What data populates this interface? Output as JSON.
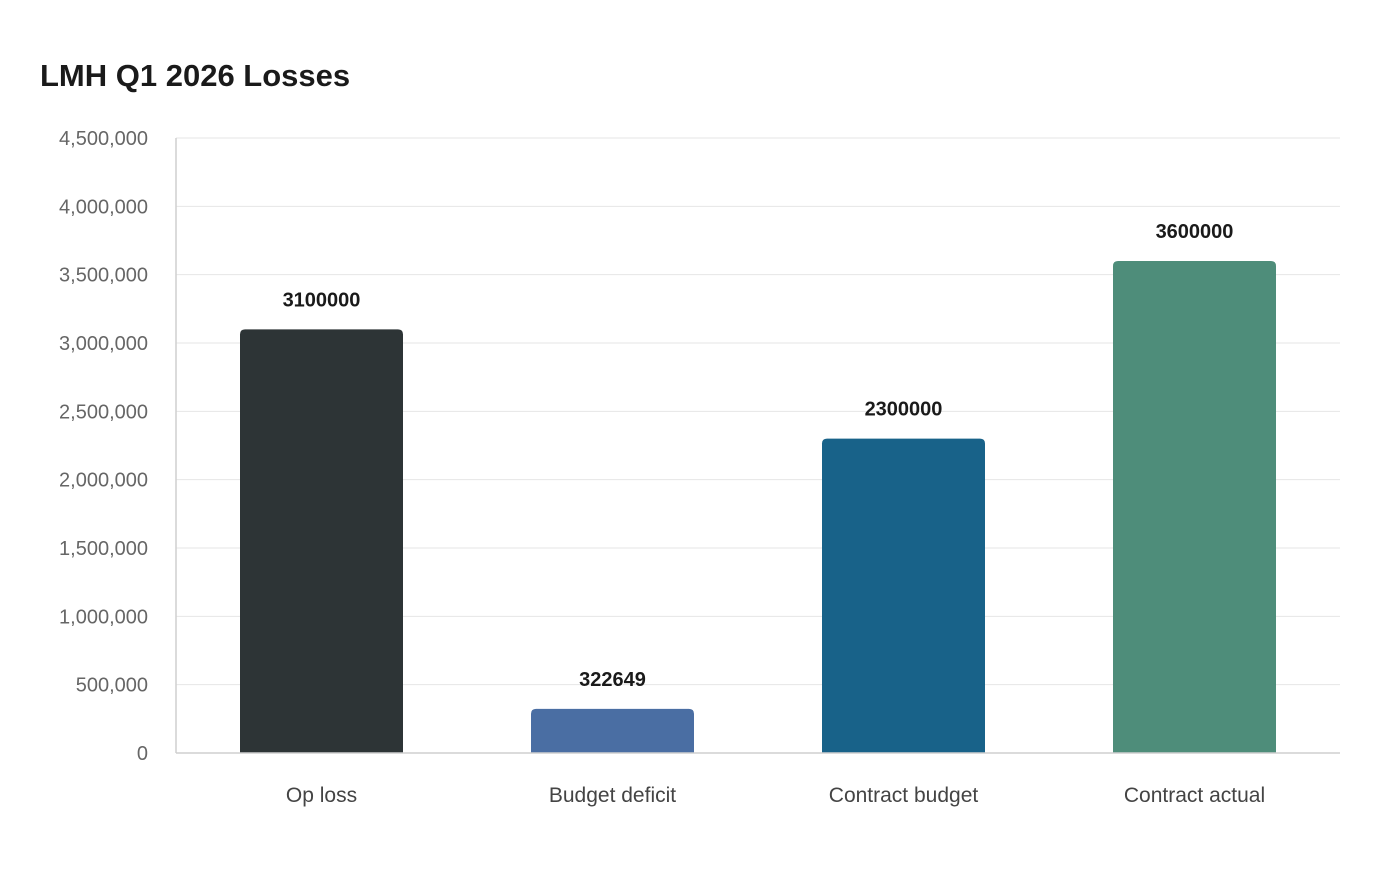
{
  "chart_data": {
    "type": "bar",
    "title": "LMH Q1 2026 Losses",
    "categories": [
      "Op loss",
      "Budget deficit",
      "Contract budget",
      "Contract actual"
    ],
    "values": [
      3100000,
      322649,
      2300000,
      3600000
    ],
    "data_labels": [
      "3100000",
      "322649",
      "2300000",
      "3600000"
    ],
    "colors": [
      "#2d3436",
      "#4a6ea3",
      "#186289",
      "#4e8d7a"
    ],
    "ylim": [
      0,
      4500000
    ],
    "yticks": [
      0,
      500000,
      1000000,
      1500000,
      2000000,
      2500000,
      3000000,
      3500000,
      4000000,
      4500000
    ],
    "ytick_labels": [
      "0",
      "500,000",
      "1,000,000",
      "1,500,000",
      "2,000,000",
      "2,500,000",
      "3,000,000",
      "3,500,000",
      "4,000,000",
      "4,500,000"
    ],
    "xlabel": "",
    "ylabel": "",
    "grid": true,
    "legend": "none"
  }
}
